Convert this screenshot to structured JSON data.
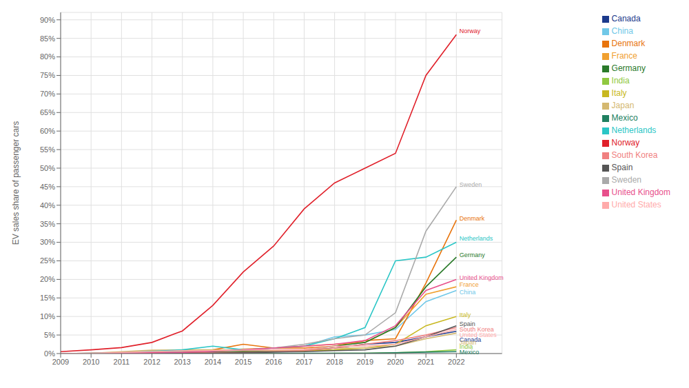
{
  "chart_data": {
    "type": "line",
    "ylabel": "EV sales share of passenger cars",
    "x": [
      2009,
      2010,
      2011,
      2012,
      2013,
      2014,
      2015,
      2016,
      2017,
      2018,
      2019,
      2020,
      2021,
      2022
    ],
    "xlim": [
      2009,
      2023.5
    ],
    "xticks": [
      2009,
      2010,
      2011,
      2012,
      2013,
      2014,
      2015,
      2016,
      2017,
      2018,
      2019,
      2020,
      2021,
      2022
    ],
    "ylim": [
      0,
      92
    ],
    "yticks": [
      {
        "value": 0,
        "label": "0%"
      },
      {
        "value": 5,
        "label": "5%"
      },
      {
        "value": 10,
        "label": "10%"
      },
      {
        "value": 15,
        "label": "15%"
      },
      {
        "value": 20,
        "label": "20%"
      },
      {
        "value": 25,
        "label": "25%"
      },
      {
        "value": 30,
        "label": "30%"
      },
      {
        "value": 35,
        "label": "35%"
      },
      {
        "value": 40,
        "label": "40%"
      },
      {
        "value": 45,
        "label": "45%"
      },
      {
        "value": 50,
        "label": "50%"
      },
      {
        "value": 55,
        "label": "55%"
      },
      {
        "value": 60,
        "label": "60%"
      },
      {
        "value": 65,
        "label": "65%"
      },
      {
        "value": 70,
        "label": "70%"
      },
      {
        "value": 75,
        "label": "75%"
      },
      {
        "value": 80,
        "label": "80%"
      },
      {
        "value": 85,
        "label": "85%"
      },
      {
        "value": 90,
        "label": "90%"
      }
    ],
    "grid": true,
    "legend": "upper right",
    "series": [
      {
        "name": "Canada",
        "color": "#1c3a8c",
        "values": [
          0.0,
          0.0,
          0.1,
          0.2,
          0.3,
          0.4,
          0.5,
          0.7,
          0.8,
          1.5,
          2.5,
          3.0,
          4.5,
          6.0
        ]
      },
      {
        "name": "China",
        "color": "#70c8e8",
        "values": [
          0.0,
          0.0,
          0.0,
          0.1,
          0.1,
          0.2,
          1.0,
          1.5,
          2.0,
          4.5,
          5.0,
          6.5,
          14.0,
          17.0
        ]
      },
      {
        "name": "Denmark",
        "color": "#e8740c",
        "values": [
          0.0,
          0.1,
          0.3,
          0.5,
          0.5,
          1.0,
          2.5,
          1.5,
          1.5,
          2.0,
          3.5,
          4.0,
          19.0,
          36.0
        ]
      },
      {
        "name": "France",
        "color": "#f0a030",
        "values": [
          0.0,
          0.0,
          0.1,
          0.3,
          0.5,
          0.8,
          1.2,
          1.5,
          2.0,
          2.5,
          3.0,
          7.0,
          16.0,
          18.0
        ]
      },
      {
        "name": "Germany",
        "color": "#2a7a2a",
        "values": [
          0.0,
          0.0,
          0.1,
          0.1,
          0.2,
          0.3,
          0.6,
          0.8,
          1.0,
          2.0,
          3.0,
          7.0,
          18.0,
          26.0
        ]
      },
      {
        "name": "India",
        "color": "#90c840",
        "values": [
          0.0,
          0.0,
          0.0,
          0.0,
          0.0,
          0.0,
          0.0,
          0.0,
          0.0,
          0.1,
          0.1,
          0.2,
          0.5,
          1.0
        ]
      },
      {
        "name": "Italy",
        "color": "#c8b820",
        "values": [
          0.0,
          0.0,
          0.0,
          0.1,
          0.1,
          0.2,
          0.3,
          0.5,
          0.7,
          1.0,
          1.5,
          2.5,
          7.5,
          10.0
        ]
      },
      {
        "name": "Japan",
        "color": "#d4b870",
        "values": [
          0.0,
          0.1,
          0.5,
          0.9,
          1.0,
          1.0,
          0.9,
          0.8,
          1.0,
          1.5,
          1.5,
          2.0,
          4.0,
          5.5
        ]
      },
      {
        "name": "Mexico",
        "color": "#208060",
        "values": [
          0.0,
          0.0,
          0.0,
          0.0,
          0.0,
          0.0,
          0.0,
          0.0,
          0.1,
          0.1,
          0.1,
          0.2,
          0.4,
          0.5
        ]
      },
      {
        "name": "Netherlands",
        "color": "#2bc6c6",
        "values": [
          0.0,
          0.1,
          0.2,
          0.6,
          1.0,
          2.0,
          1.0,
          1.5,
          2.0,
          4.0,
          7.0,
          25.0,
          26.0,
          30.0
        ]
      },
      {
        "name": "Norway",
        "color": "#e0202a",
        "values": [
          0.5,
          1.0,
          1.6,
          3.0,
          6.1,
          13.0,
          22.0,
          29.0,
          39.0,
          46.0,
          50.0,
          54.0,
          75.0,
          86.0
        ]
      },
      {
        "name": "South Korea",
        "color": "#f08080",
        "values": [
          0.0,
          0.0,
          0.0,
          0.1,
          0.1,
          0.2,
          0.3,
          0.5,
          0.8,
          1.5,
          2.5,
          3.5,
          5.0,
          7.0
        ]
      },
      {
        "name": "Spain",
        "color": "#555555",
        "values": [
          0.0,
          0.0,
          0.1,
          0.1,
          0.1,
          0.1,
          0.2,
          0.4,
          0.5,
          0.8,
          1.0,
          2.0,
          4.5,
          7.5
        ]
      },
      {
        "name": "Sweden",
        "color": "#aaaaaa",
        "values": [
          0.0,
          0.1,
          0.2,
          0.3,
          0.5,
          0.7,
          1.0,
          1.5,
          2.5,
          4.0,
          5.0,
          11.0,
          33.0,
          45.0
        ]
      },
      {
        "name": "United Kingdom",
        "color": "#e8508c",
        "values": [
          0.0,
          0.0,
          0.1,
          0.2,
          0.3,
          0.6,
          1.0,
          1.5,
          2.0,
          2.5,
          3.5,
          7.5,
          17.0,
          20.0
        ]
      },
      {
        "name": "United States",
        "color": "#ffaaaa",
        "values": [
          0.0,
          0.1,
          0.3,
          0.5,
          0.8,
          0.8,
          0.9,
          1.0,
          1.1,
          2.0,
          2.0,
          2.5,
          4.5,
          6.5
        ]
      }
    ],
    "annotations": [
      {
        "text": "Norway",
        "x": 2022.1,
        "y": 87.0,
        "color": "#e0202a"
      },
      {
        "text": "Sweden",
        "x": 2022.1,
        "y": 45.5,
        "color": "#aaaaaa"
      },
      {
        "text": "Denmark",
        "x": 2022.1,
        "y": 36.5,
        "color": "#e8740c"
      },
      {
        "text": "Netherlands",
        "x": 2022.1,
        "y": 31.0,
        "color": "#2bc6c6"
      },
      {
        "text": "Germany",
        "x": 2022.1,
        "y": 26.5,
        "color": "#2a7a2a"
      },
      {
        "text": "United Kingdom",
        "x": 2022.1,
        "y": 20.5,
        "color": "#e8508c"
      },
      {
        "text": "France",
        "x": 2022.1,
        "y": 18.5,
        "color": "#f0a030"
      },
      {
        "text": "China",
        "x": 2022.1,
        "y": 16.5,
        "color": "#70c8e8"
      },
      {
        "text": "Italy",
        "x": 2022.1,
        "y": 10.5,
        "color": "#c8b820"
      },
      {
        "text": "Spain",
        "x": 2022.1,
        "y": 8.0,
        "color": "#555555"
      },
      {
        "text": "South Korea",
        "x": 2022.1,
        "y": 6.5,
        "color": "#f08080"
      },
      {
        "text": "United States",
        "x": 2022.1,
        "y": 5.0,
        "color": "#ffaaaa"
      },
      {
        "text": "Canada",
        "x": 2022.1,
        "y": 3.8,
        "color": "#1c3a8c"
      },
      {
        "text": "Japan",
        "x": 2022.1,
        "y": 3.0,
        "color": "#d4b870"
      },
      {
        "text": "India",
        "x": 2022.1,
        "y": 1.8,
        "color": "#90c840"
      },
      {
        "text": "Mexico",
        "x": 2022.1,
        "y": 0.3,
        "color": "#208060"
      }
    ]
  }
}
